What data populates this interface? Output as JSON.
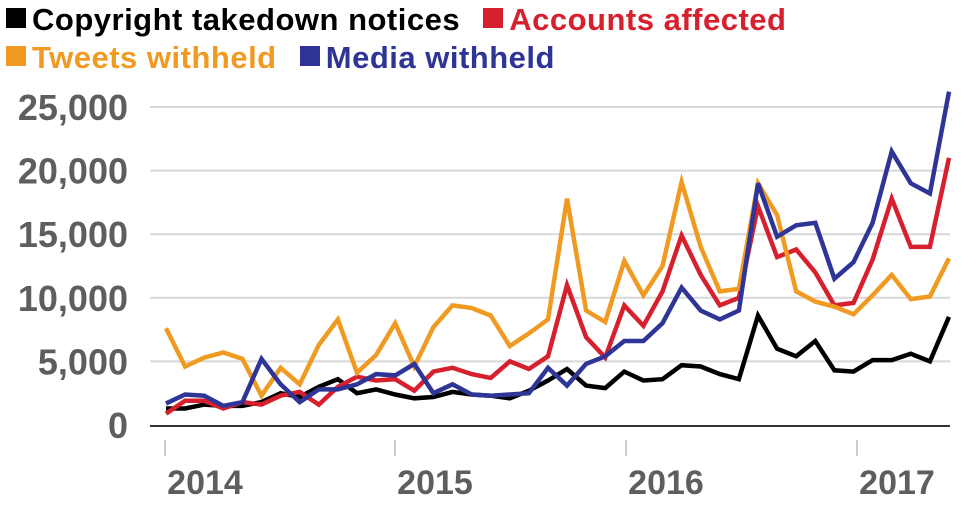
{
  "chart_data": {
    "type": "line",
    "title": "",
    "xlabel": "",
    "ylabel": "",
    "ylim": [
      0,
      25000
    ],
    "yticks": [
      "0",
      "5,000",
      "10,000",
      "15,000",
      "20,000",
      "25,000"
    ],
    "ytick_values": [
      0,
      5000,
      10000,
      15000,
      20000,
      25000
    ],
    "xticks": [
      "2014",
      "2015",
      "2016",
      "2017"
    ],
    "x_start": "Jan 2014",
    "x_step": "month",
    "grid": true,
    "legend": "top-left",
    "series": [
      {
        "name": "Copyright takedown notices",
        "color": "#000000",
        "values": [
          1300,
          1300,
          1600,
          1500,
          1500,
          1800,
          2500,
          2200,
          3000,
          3600,
          2500,
          2800,
          2400,
          2100,
          2200,
          2600,
          2400,
          2300,
          2100,
          2700,
          3500,
          4400,
          3100,
          2900,
          4200,
          3500,
          3600,
          4700,
          4600,
          4000,
          3600,
          8600,
          6000,
          5400,
          6600,
          4300,
          4200,
          5100,
          5100,
          5600,
          5000,
          8500
        ]
      },
      {
        "name": "Accounts affected",
        "color": "#d7202e",
        "values": [
          900,
          1900,
          1900,
          1300,
          1800,
          1600,
          2300,
          2600,
          1600,
          3000,
          3800,
          3500,
          3600,
          2700,
          4200,
          4500,
          4000,
          3700,
          5000,
          4400,
          5400,
          11000,
          6900,
          5300,
          9400,
          7800,
          10500,
          14900,
          11800,
          9400,
          10000,
          17200,
          13200,
          13800,
          12000,
          9400,
          9600,
          13000,
          17800,
          14000,
          14000,
          21000
        ]
      },
      {
        "name": "Tweets withheld",
        "color": "#f09a22",
        "values": [
          7600,
          4600,
          5300,
          5700,
          5200,
          2300,
          4500,
          3200,
          6300,
          8300,
          4100,
          5500,
          8000,
          4600,
          7700,
          9400,
          9200,
          8600,
          6200,
          7200,
          8300,
          17800,
          9000,
          8100,
          12900,
          10200,
          12500,
          19100,
          14000,
          10500,
          10700,
          19000,
          16500,
          10500,
          9700,
          9300,
          8700,
          10200,
          11800,
          9900,
          10100,
          13100
        ]
      },
      {
        "name": "Media withheld",
        "color": "#2e3596",
        "values": [
          1700,
          2400,
          2300,
          1500,
          1800,
          5200,
          3200,
          1800,
          2800,
          2800,
          3200,
          4000,
          3900,
          4800,
          2500,
          3200,
          2400,
          2300,
          2400,
          2500,
          4500,
          3100,
          4800,
          5400,
          6600,
          6600,
          8000,
          10800,
          9000,
          8300,
          9000,
          19000,
          14800,
          15700,
          15900,
          11500,
          12800,
          15900,
          21500,
          19000,
          18200,
          26200
        ]
      }
    ]
  }
}
